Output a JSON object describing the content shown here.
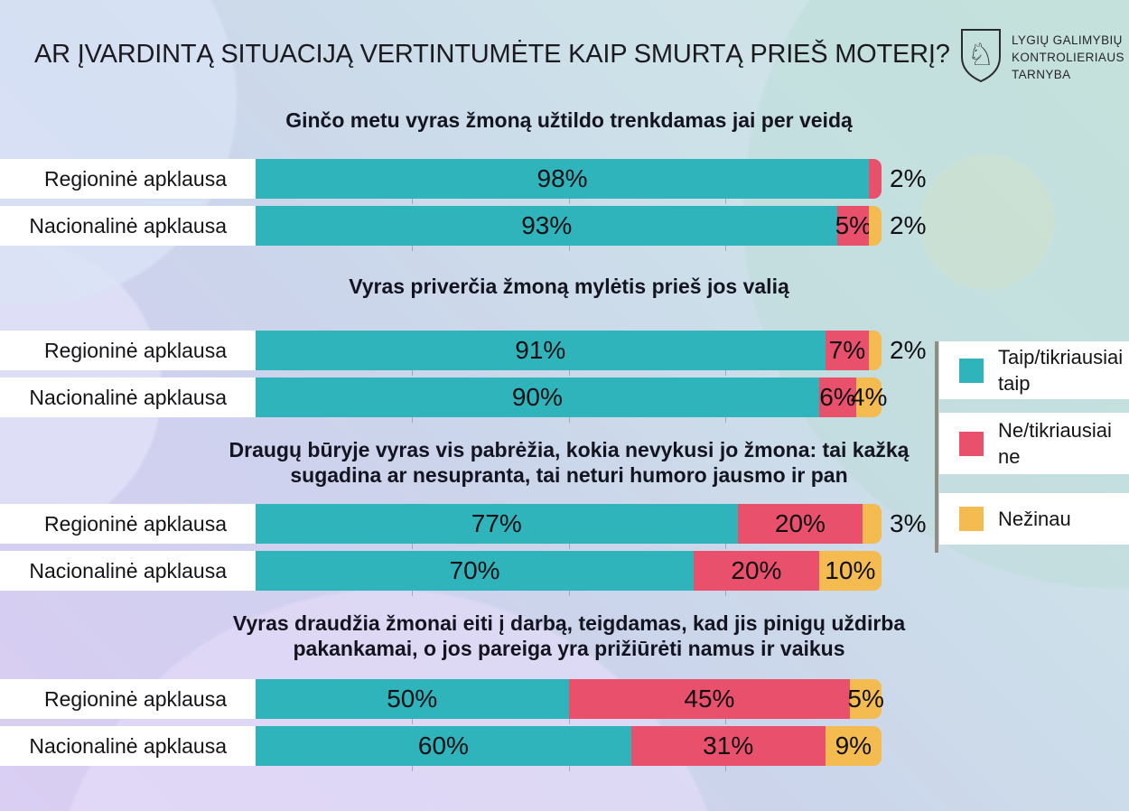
{
  "header": {
    "title": "AR ĮVARDINTĄ SITUACIJĄ VERTINTUMĖTE KAIP SMURTĄ PRIEŠ MOTERĮ?",
    "logo": {
      "icon": "vytis-coat-of-arms",
      "line1": "LYGIŲ GALIMYBIŲ",
      "line2": "KONTROLIERIAUS",
      "line3": "TARNYBA"
    }
  },
  "colors": {
    "taip": "#2fb4bb",
    "ne": "#e9506b",
    "nezinau": "#f4bb50",
    "label_strip": "#ffffff",
    "legend_rule": "#938b7d"
  },
  "legend": {
    "items": [
      {
        "key": "taip",
        "label": "Taip/tikriausiai taip"
      },
      {
        "key": "ne",
        "label": "Ne/tikriausiai ne"
      },
      {
        "key": "nezinau",
        "label": "Nežinau"
      }
    ]
  },
  "chart_data": {
    "type": "bar",
    "orientation": "horizontal-stacked",
    "title": "AR ĮVARDINTĄ SITUACIJĄ VERTINTUMĖTE KAIP SMURTĄ PRIEŠ MOTERĮ?",
    "unit": "%",
    "xlim": [
      0,
      100
    ],
    "axis_tick_positions_percent": [
      25,
      50,
      75
    ],
    "legend_position": "right",
    "series": [
      "Taip/tikriausiai taip",
      "Ne/tikriausiai ne",
      "Nežinau"
    ],
    "row_labels": [
      "Regioninė apklausa",
      "Nacionalinė apklausa"
    ],
    "groups": [
      {
        "question": "Ginčo metu vyras žmoną užtildo trenkdamas jai per veidą",
        "rows": [
          {
            "label": "Regioninė apklausa",
            "segments": [
              {
                "series": "taip",
                "value": 98,
                "label": "98%",
                "placement": "inside"
              },
              {
                "series": "ne",
                "value": 2,
                "label": "2%",
                "placement": "outside"
              }
            ]
          },
          {
            "label": "Nacionalinė apklausa",
            "segments": [
              {
                "series": "taip",
                "value": 93,
                "label": "93%",
                "placement": "inside"
              },
              {
                "series": "ne",
                "value": 5,
                "label": "5%",
                "placement": "inside"
              },
              {
                "series": "nezinau",
                "value": 2,
                "label": "2%",
                "placement": "outside"
              }
            ]
          }
        ]
      },
      {
        "question": "Vyras priverčia žmoną mylėtis prieš jos valią",
        "rows": [
          {
            "label": "Regioninė apklausa",
            "segments": [
              {
                "series": "taip",
                "value": 91,
                "label": "91%",
                "placement": "inside"
              },
              {
                "series": "ne",
                "value": 7,
                "label": "7%",
                "placement": "inside"
              },
              {
                "series": "nezinau",
                "value": 2,
                "label": "2%",
                "placement": "outside"
              }
            ]
          },
          {
            "label": "Nacionalinė apklausa",
            "segments": [
              {
                "series": "taip",
                "value": 90,
                "label": "90%",
                "placement": "inside"
              },
              {
                "series": "ne",
                "value": 6,
                "label": "6%",
                "placement": "inside"
              },
              {
                "series": "nezinau",
                "value": 4,
                "label": "4%",
                "placement": "inside"
              }
            ]
          }
        ]
      },
      {
        "question": "Draugų būryje vyras vis pabrėžia, kokia nevykusi jo žmona: tai kažką sugadina ar nesupranta, tai neturi humoro jausmo ir pan",
        "rows": [
          {
            "label": "Regioninė apklausa",
            "segments": [
              {
                "series": "taip",
                "value": 77,
                "label": "77%",
                "placement": "inside"
              },
              {
                "series": "ne",
                "value": 20,
                "label": "20%",
                "placement": "inside"
              },
              {
                "series": "nezinau",
                "value": 3,
                "label": "3%",
                "placement": "outside"
              }
            ]
          },
          {
            "label": "Nacionalinė apklausa",
            "segments": [
              {
                "series": "taip",
                "value": 70,
                "label": "70%",
                "placement": "inside"
              },
              {
                "series": "ne",
                "value": 20,
                "label": "20%",
                "placement": "inside"
              },
              {
                "series": "nezinau",
                "value": 10,
                "label": "10%",
                "placement": "inside"
              }
            ]
          }
        ]
      },
      {
        "question": "Vyras draudžia žmonai eiti į darbą, teigdamas, kad jis pinigų uždirba pakankamai, o jos pareiga yra prižiūrėti namus ir vaikus",
        "rows": [
          {
            "label": "Regioninė apklausa",
            "segments": [
              {
                "series": "taip",
                "value": 50,
                "label": "50%",
                "placement": "inside"
              },
              {
                "series": "ne",
                "value": 45,
                "label": "45%",
                "placement": "inside"
              },
              {
                "series": "nezinau",
                "value": 5,
                "label": "5%",
                "placement": "inside"
              }
            ]
          },
          {
            "label": "Nacionalinė apklausa",
            "segments": [
              {
                "series": "taip",
                "value": 60,
                "label": "60%",
                "placement": "inside"
              },
              {
                "series": "ne",
                "value": 31,
                "label": "31%",
                "placement": "inside"
              },
              {
                "series": "nezinau",
                "value": 9,
                "label": "9%",
                "placement": "inside"
              }
            ]
          }
        ]
      }
    ]
  }
}
